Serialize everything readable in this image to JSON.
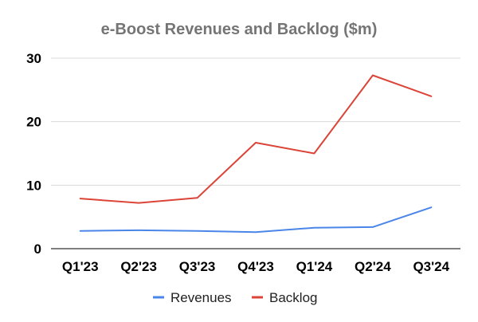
{
  "chart_data": {
    "type": "line",
    "title": "e-Boost Revenues and Backlog ($m)",
    "xlabel": "",
    "ylabel": "",
    "categories": [
      "Q1'23",
      "Q2'23",
      "Q3'23",
      "Q4'23",
      "Q1'24",
      "Q2'24",
      "Q3'24"
    ],
    "ylim": [
      0,
      30
    ],
    "yticks": [
      0,
      10,
      20,
      30
    ],
    "grid": true,
    "legend": "bottom",
    "series": [
      {
        "name": "Revenues",
        "color": "#4a86e8",
        "values": [
          2.8,
          2.9,
          2.8,
          2.6,
          3.3,
          3.4,
          6.5
        ]
      },
      {
        "name": "Backlog",
        "color": "#db4437",
        "values": [
          7.9,
          7.2,
          8.0,
          16.7,
          15.0,
          27.3,
          24.0
        ]
      }
    ]
  }
}
